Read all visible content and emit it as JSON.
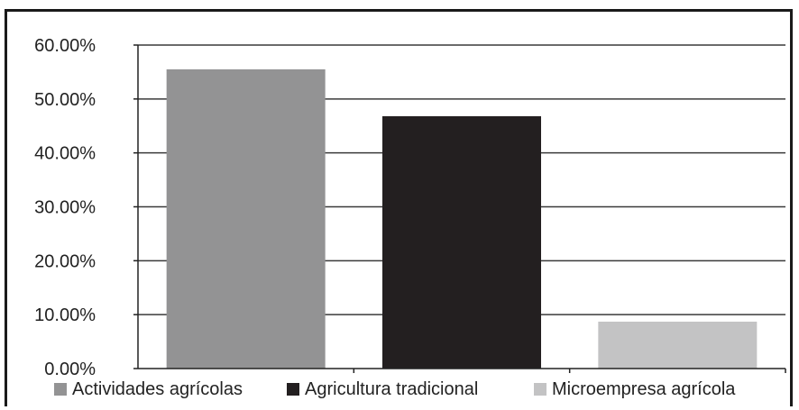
{
  "chart_data": {
    "type": "bar",
    "categories": [
      "Actividades agrícolas",
      "Agricultura tradicional",
      "Microempresa agrícola"
    ],
    "values": [
      0.555,
      0.468,
      0.087
    ],
    "colors": [
      "#939394",
      "#231f20",
      "#c3c3c4"
    ],
    "ylim": [
      0,
      0.6
    ],
    "y_ticks": [
      {
        "value": 0.0,
        "label": "0.00%"
      },
      {
        "value": 0.1,
        "label": "10.00%"
      },
      {
        "value": 0.2,
        "label": "20.00%"
      },
      {
        "value": 0.3,
        "label": "30.00%"
      },
      {
        "value": 0.4,
        "label": "40.00%"
      },
      {
        "value": 0.5,
        "label": "50.00%"
      },
      {
        "value": 0.6,
        "label": "60.00%"
      }
    ],
    "grid": true,
    "legend": {
      "position": "bottom",
      "entries": [
        "Actividades agrícolas",
        "Agricultura tradicional",
        "Microempresa agrícola"
      ]
    },
    "title": "",
    "xlabel": "",
    "ylabel": ""
  }
}
